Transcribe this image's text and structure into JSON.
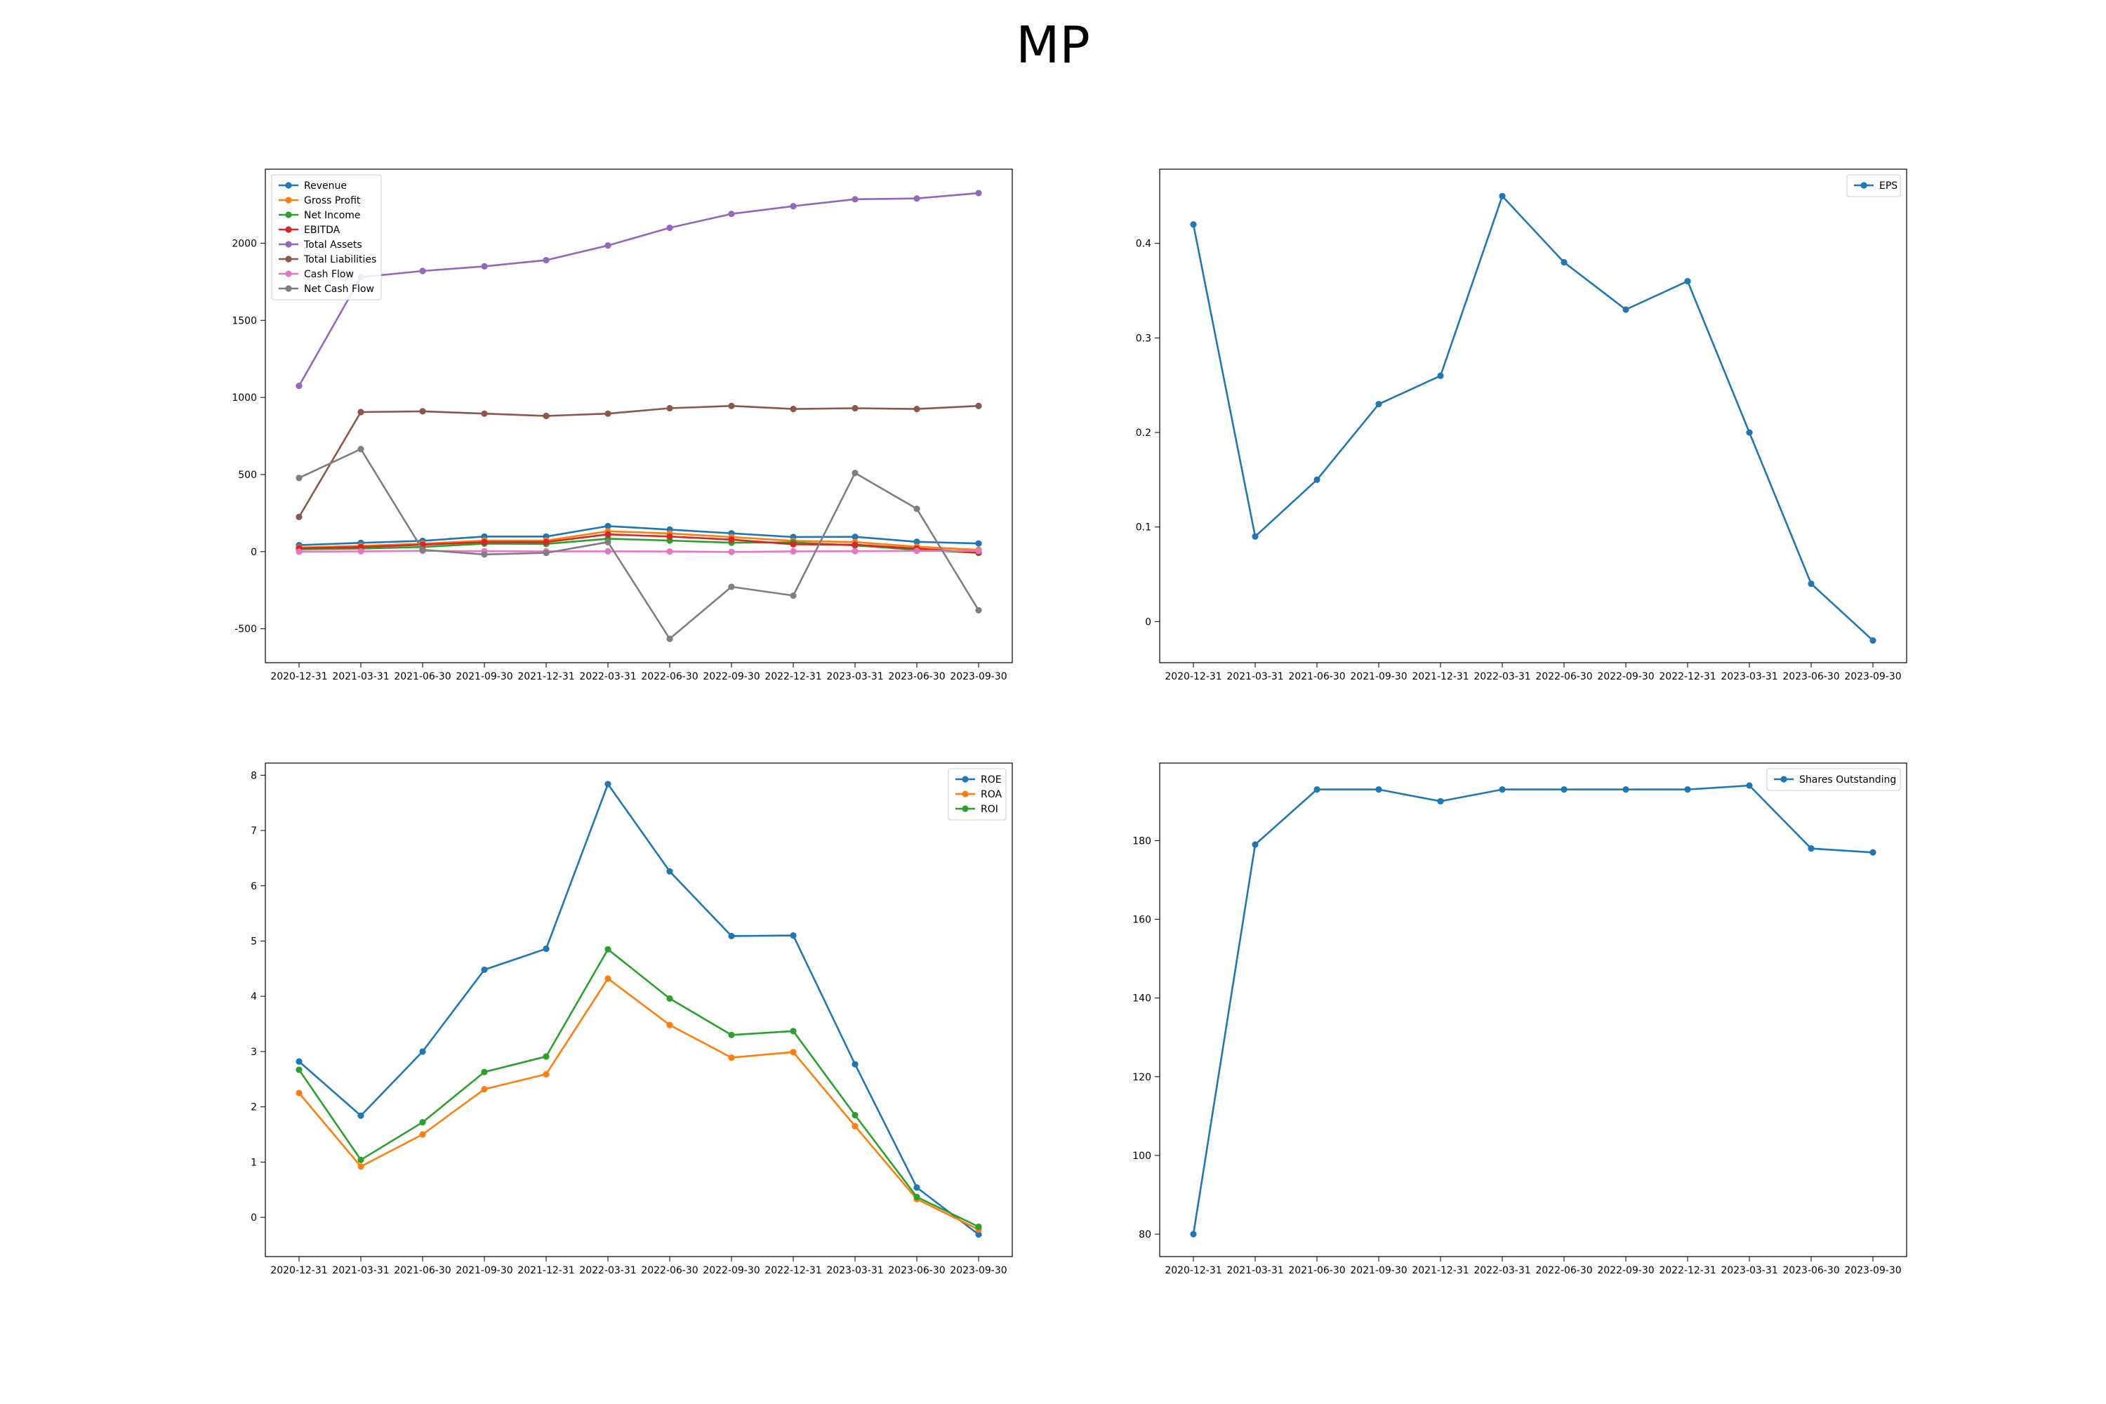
{
  "title": "MP",
  "colors": {
    "blue": "#1f77b4",
    "orange": "#ff7f0e",
    "green": "#2ca02c",
    "red": "#d62728",
    "purple": "#9467bd",
    "brown": "#8c564b",
    "pink": "#e377c2",
    "gray": "#7f7f7f"
  },
  "chart_data": [
    {
      "type": "line",
      "title": "",
      "xlabel": "",
      "ylabel": "",
      "x": [
        "2020-12-31",
        "2021-03-31",
        "2021-06-30",
        "2021-09-30",
        "2021-12-31",
        "2022-03-31",
        "2022-06-30",
        "2022-09-30",
        "2022-12-31",
        "2023-03-31",
        "2023-06-30",
        "2023-09-30"
      ],
      "ylim": [
        -720,
        2480
      ],
      "yticks": [
        -500,
        0,
        500,
        1000,
        1500,
        2000
      ],
      "legend": "upper-left",
      "grid": false,
      "series": [
        {
          "name": "Revenue",
          "color": "#1f77b4",
          "values": [
            42,
            57,
            70,
            98,
            98,
            166,
            143,
            119,
            95,
            96,
            64,
            53
          ]
        },
        {
          "name": "Gross Profit",
          "color": "#ff7f0e",
          "values": [
            27,
            38,
            52,
            72,
            72,
            132,
            118,
            95,
            70,
            62,
            32,
            12
          ]
        },
        {
          "name": "Net Income",
          "color": "#2ca02c",
          "values": [
            15,
            20,
            30,
            52,
            50,
            84,
            72,
            58,
            60,
            40,
            12,
            -8
          ]
        },
        {
          "name": "EBITDA",
          "color": "#d62728",
          "values": [
            22,
            30,
            45,
            62,
            62,
            112,
            98,
            78,
            48,
            45,
            20,
            -5
          ]
        },
        {
          "name": "Total Assets",
          "color": "#9467bd",
          "values": [
            1075,
            1780,
            1820,
            1850,
            1890,
            1985,
            2100,
            2190,
            2240,
            2285,
            2290,
            2325
          ]
        },
        {
          "name": "Total Liabilities",
          "color": "#8c564b",
          "values": [
            225,
            905,
            910,
            895,
            880,
            895,
            930,
            945,
            925,
            930,
            925,
            945
          ]
        },
        {
          "name": "Cash Flow",
          "color": "#e377c2",
          "values": [
            0,
            2,
            5,
            3,
            2,
            2,
            1,
            -2,
            2,
            3,
            5,
            5
          ]
        },
        {
          "name": "Net Cash Flow",
          "color": "#7f7f7f",
          "values": [
            478,
            665,
            12,
            -18,
            -8,
            62,
            -565,
            -228,
            -285,
            510,
            278,
            -380
          ]
        }
      ]
    },
    {
      "type": "line",
      "title": "",
      "xlabel": "",
      "ylabel": "",
      "x": [
        "2020-12-31",
        "2021-03-31",
        "2021-06-30",
        "2021-09-30",
        "2021-12-31",
        "2022-03-31",
        "2022-06-30",
        "2022-09-30",
        "2022-12-31",
        "2023-03-31",
        "2023-06-30",
        "2023-09-30"
      ],
      "ylim": [
        -0.0435,
        0.4785
      ],
      "yticks": [
        0.0,
        0.1,
        0.2,
        0.3,
        0.4
      ],
      "legend": "upper-right",
      "grid": false,
      "series": [
        {
          "name": "EPS",
          "color": "#1f77b4",
          "values": [
            0.42,
            0.09,
            0.15,
            0.23,
            0.26,
            0.45,
            0.38,
            0.33,
            0.36,
            0.2,
            0.04,
            -0.02
          ]
        }
      ]
    },
    {
      "type": "line",
      "title": "",
      "xlabel": "",
      "ylabel": "",
      "x": [
        "2020-12-31",
        "2021-03-31",
        "2021-06-30",
        "2021-09-30",
        "2021-12-31",
        "2022-03-31",
        "2022-06-30",
        "2022-09-30",
        "2022-12-31",
        "2023-03-31",
        "2023-06-30",
        "2023-09-30"
      ],
      "ylim": [
        -0.71,
        8.22
      ],
      "yticks": [
        0,
        1,
        2,
        3,
        4,
        5,
        6,
        7,
        8
      ],
      "legend": "upper-right",
      "grid": false,
      "series": [
        {
          "name": "ROE",
          "color": "#1f77b4",
          "values": [
            2.82,
            1.84,
            3.0,
            4.48,
            4.86,
            7.84,
            6.26,
            5.09,
            5.1,
            2.77,
            0.54,
            -0.31
          ]
        },
        {
          "name": "ROA",
          "color": "#ff7f0e",
          "values": [
            2.25,
            0.92,
            1.5,
            2.32,
            2.59,
            4.32,
            3.48,
            2.89,
            2.99,
            1.65,
            0.33,
            -0.22
          ]
        },
        {
          "name": "ROI",
          "color": "#2ca02c",
          "values": [
            2.67,
            1.04,
            1.72,
            2.63,
            2.91,
            4.85,
            3.96,
            3.3,
            3.37,
            1.85,
            0.37,
            -0.17
          ]
        }
      ]
    },
    {
      "type": "line",
      "title": "",
      "xlabel": "",
      "ylabel": "",
      "x": [
        "2020-12-31",
        "2021-03-31",
        "2021-06-30",
        "2021-09-30",
        "2021-12-31",
        "2022-03-31",
        "2022-06-30",
        "2022-09-30",
        "2022-12-31",
        "2023-03-31",
        "2023-06-30",
        "2023-09-30"
      ],
      "ylim": [
        74.3,
        199.7
      ],
      "yticks": [
        80,
        100,
        120,
        140,
        160,
        180
      ],
      "legend": "upper-right",
      "grid": false,
      "series": [
        {
          "name": "Shares Outstanding",
          "color": "#1f77b4",
          "values": [
            80,
            179,
            193,
            193,
            190,
            193,
            193,
            193,
            193,
            194,
            178,
            177
          ]
        }
      ]
    }
  ]
}
